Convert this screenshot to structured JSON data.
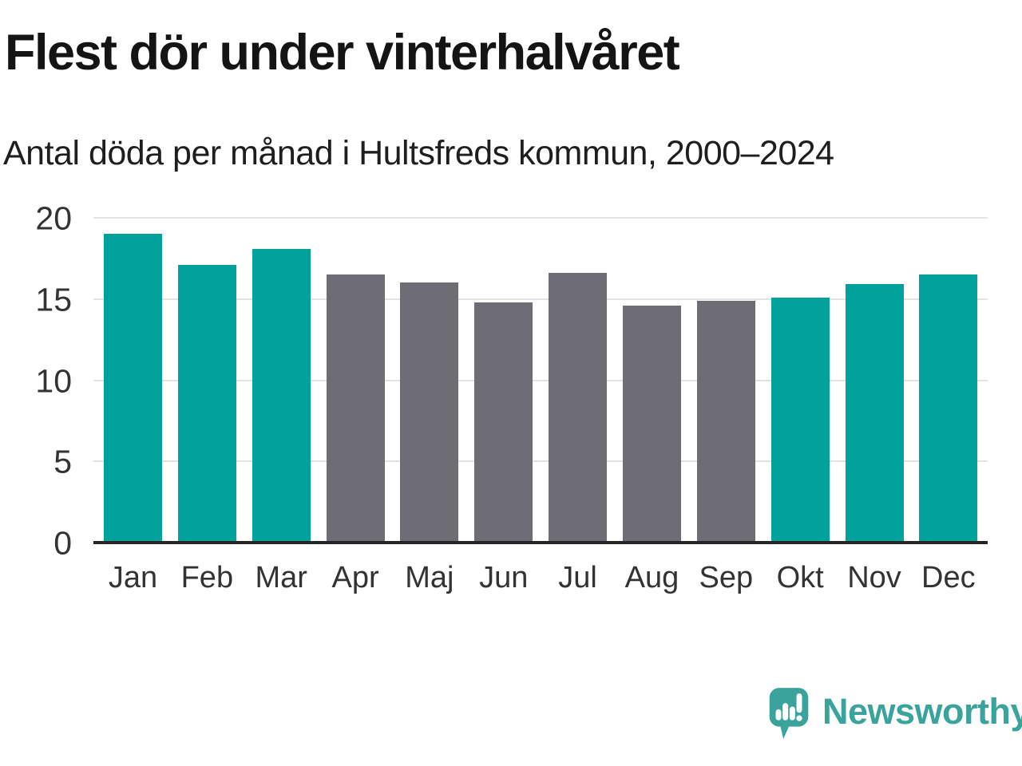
{
  "header": {
    "title": "Flest dör under vinterhalvåret",
    "subtitle": "Antal döda per månad i Hultsfreds kommun, 2000–2024"
  },
  "chart_data": {
    "type": "bar",
    "title": "Flest dör under vinterhalvåret",
    "subtitle": "Antal döda per månad i Hultsfreds kommun, 2000–2024",
    "categories": [
      "Jan",
      "Feb",
      "Mar",
      "Apr",
      "Maj",
      "Jun",
      "Jul",
      "Aug",
      "Sep",
      "Okt",
      "Nov",
      "Dec"
    ],
    "values": [
      19.0,
      17.1,
      18.1,
      16.5,
      16.0,
      14.8,
      16.6,
      14.6,
      14.9,
      15.1,
      15.9,
      16.5
    ],
    "highlighted": [
      true,
      true,
      true,
      false,
      false,
      false,
      false,
      false,
      false,
      true,
      true,
      true
    ],
    "xlabel": "",
    "ylabel": "",
    "ylim": [
      0,
      20
    ],
    "yticks": [
      0,
      5,
      10,
      15,
      20
    ],
    "grid": true,
    "legend": "none",
    "colors": {
      "highlight": "#00a29b",
      "muted": "#6e6d76",
      "gridline": "#e2e2e2",
      "axis": "#262626",
      "tick_text": "#333333"
    }
  },
  "brand": {
    "name": "Newsworthy",
    "color": "#3aa39c",
    "icon": "newsworthy-speech-bubble-bar-chart-icon"
  }
}
